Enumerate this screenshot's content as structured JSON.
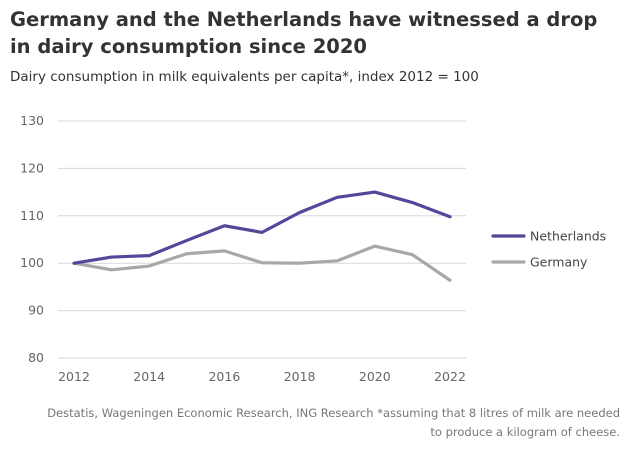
{
  "title": "Germany and the Netherlands have witnessed a drop in dairy consumption since 2020",
  "subtitle": "Dairy consumption in milk equivalents per capita*, index 2012 = 100",
  "source": "Destatis, Wageningen Economic Research, ING Research *assuming that 8 litres of milk are needed to produce a kilogram of cheese.",
  "chart_data": {
    "type": "line",
    "x": [
      2012,
      2013,
      2014,
      2015,
      2016,
      2017,
      2018,
      2019,
      2020,
      2021,
      2022
    ],
    "x_ticks": [
      2012,
      2014,
      2016,
      2018,
      2020,
      2022
    ],
    "y_ticks": [
      80,
      90,
      100,
      110,
      120,
      130
    ],
    "ylim": [
      80,
      130
    ],
    "xlim": [
      2012,
      2022
    ],
    "grid": true,
    "legend_position": "right",
    "series": [
      {
        "name": "Netherlands",
        "color": "#54479a",
        "values": [
          100,
          101.3,
          101.6,
          104.8,
          107.9,
          106.5,
          110.7,
          113.9,
          115,
          112.8,
          109.8
        ]
      },
      {
        "name": "Germany",
        "color": "#a8a8a8",
        "values": [
          100,
          98.6,
          99.4,
          102,
          102.6,
          100.1,
          100,
          100.5,
          103.6,
          101.8,
          96.4
        ]
      }
    ]
  }
}
